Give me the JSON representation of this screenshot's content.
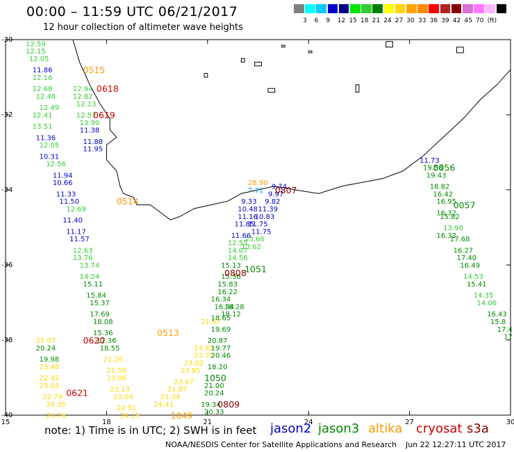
{
  "header": {
    "title": "00:00 – 11:59 UTC 06/21/2017",
    "subtitle": "12 hour collection of altimeter wave heights"
  },
  "color_scale": {
    "colors": [
      "#808080",
      "#00ffff",
      "#00c8ff",
      "#0000cd",
      "#00008b",
      "#00e600",
      "#32cd32",
      "#008000",
      "#ffff00",
      "#ffd700",
      "#ffa500",
      "#ff8c00",
      "#ff0000",
      "#b22222",
      "#8b0000",
      "#da70d6",
      "#ff77ff",
      "#ffb6ff",
      "#000000"
    ],
    "labels": [
      "3",
      "6",
      "9",
      "12",
      "15",
      "18",
      "21",
      "24",
      "27",
      "30",
      "33",
      "36",
      "39",
      "42",
      "45",
      "70",
      "(ft)"
    ]
  },
  "axes": {
    "x_ticks": [
      "15",
      "18",
      "21",
      "24",
      "27",
      "30"
    ],
    "y_ticks": [
      "-30",
      "-32",
      "-34",
      "-36",
      "-38",
      "-40"
    ]
  },
  "note": "note: 1) Time is in UTC; 2) SWH is in feet",
  "satellites": [
    {
      "name": "jason2",
      "color": "#0000cc"
    },
    {
      "name": "jason3",
      "color": "#008800"
    },
    {
      "name": "altika",
      "color": "#ff9900"
    },
    {
      "name": "cryosat",
      "color": "#cc0000"
    },
    {
      "name": "s3a",
      "color": "#8b0000"
    }
  ],
  "footer": {
    "credit": "NOAA/NESDIS Center for Satellite Applications and Research",
    "timestamp": "Jun 22 12:27:11 UTC 2017"
  },
  "map_data": {
    "extent": {
      "lon": [
        15,
        30
      ],
      "lat": [
        -40,
        -30
      ]
    },
    "time_labels": [
      {
        "text": "0515",
        "lon": 17.3,
        "lat": -30.8,
        "color": "#ff9900"
      },
      {
        "text": "0618",
        "lon": 17.7,
        "lat": -31.3,
        "color": "#cc0000"
      },
      {
        "text": "0619",
        "lon": 17.6,
        "lat": -32.0,
        "color": "#cc0000"
      },
      {
        "text": "0514",
        "lon": 18.3,
        "lat": -34.3,
        "color": "#ff9900"
      },
      {
        "text": "0807",
        "lon": 23.0,
        "lat": -34.0,
        "color": "#8b0000"
      },
      {
        "text": "0056",
        "lon": 27.7,
        "lat": -33.4,
        "color": "#008800"
      },
      {
        "text": "0057",
        "lon": 28.3,
        "lat": -34.4,
        "color": "#008800"
      },
      {
        "text": "0808",
        "lon": 21.5,
        "lat": -36.2,
        "color": "#8b0000"
      },
      {
        "text": "1051",
        "lon": 22.1,
        "lat": -36.1,
        "color": "#008800"
      },
      {
        "text": "0513",
        "lon": 19.5,
        "lat": -37.8,
        "color": "#ff9900"
      },
      {
        "text": "0620",
        "lon": 17.3,
        "lat": -38.0,
        "color": "#cc0000"
      },
      {
        "text": "1050",
        "lon": 20.9,
        "lat": -39.0,
        "color": "#008800"
      },
      {
        "text": "0621",
        "lon": 16.8,
        "lat": -39.4,
        "color": "#cc0000"
      },
      {
        "text": "0809",
        "lon": 21.3,
        "lat": -39.7,
        "color": "#8b0000"
      },
      {
        "text": "1049",
        "lon": 19.9,
        "lat": -40.0,
        "color": "#ff9900"
      }
    ],
    "swh_values": [
      {
        "v": "12.59",
        "lon": 15.6,
        "lat": -30.1,
        "c": "#32cd32"
      },
      {
        "v": "12.15",
        "lon": 15.6,
        "lat": -30.3,
        "c": "#32cd32"
      },
      {
        "v": "12.05",
        "lon": 15.7,
        "lat": -30.5,
        "c": "#32cd32"
      },
      {
        "v": "11.86",
        "lon": 15.8,
        "lat": -30.8,
        "c": "#0000cc"
      },
      {
        "v": "12.16",
        "lon": 15.8,
        "lat": -31.0,
        "c": "#32cd32"
      },
      {
        "v": "12.68",
        "lon": 15.8,
        "lat": -31.3,
        "c": "#32cd32"
      },
      {
        "v": "12.48",
        "lon": 15.9,
        "lat": -31.5,
        "c": "#32cd32"
      },
      {
        "v": "12.49",
        "lon": 16.0,
        "lat": -31.8,
        "c": "#32cd32"
      },
      {
        "v": "12.41",
        "lon": 15.8,
        "lat": -32.0,
        "c": "#32cd32"
      },
      {
        "v": "13.51",
        "lon": 15.8,
        "lat": -32.3,
        "c": "#32cd32"
      },
      {
        "v": "11.36",
        "lon": 15.9,
        "lat": -32.6,
        "c": "#0000cc"
      },
      {
        "v": "12.05",
        "lon": 16.0,
        "lat": -32.8,
        "c": "#32cd32"
      },
      {
        "v": "10.31",
        "lon": 16.0,
        "lat": -33.1,
        "c": "#0000cc"
      },
      {
        "v": "12.56",
        "lon": 16.2,
        "lat": -33.3,
        "c": "#32cd32"
      },
      {
        "v": "11.94",
        "lon": 16.4,
        "lat": -33.6,
        "c": "#0000cc"
      },
      {
        "v": "10.66",
        "lon": 16.4,
        "lat": -33.8,
        "c": "#0000cc"
      },
      {
        "v": "11.33",
        "lon": 16.5,
        "lat": -34.1,
        "c": "#0000cc"
      },
      {
        "v": "11.50",
        "lon": 16.6,
        "lat": -34.3,
        "c": "#0000cc"
      },
      {
        "v": "12.69",
        "lon": 16.8,
        "lat": -34.5,
        "c": "#32cd32"
      },
      {
        "v": "11.40",
        "lon": 16.7,
        "lat": -34.8,
        "c": "#0000cc"
      },
      {
        "v": "11.17",
        "lon": 16.8,
        "lat": -35.1,
        "c": "#0000cc"
      },
      {
        "v": "11.57",
        "lon": 16.9,
        "lat": -35.3,
        "c": "#0000cc"
      },
      {
        "v": "12.63",
        "lon": 17.0,
        "lat": -35.6,
        "c": "#32cd32"
      },
      {
        "v": "13.76",
        "lon": 17.0,
        "lat": -35.8,
        "c": "#32cd32"
      },
      {
        "v": "13.74",
        "lon": 17.2,
        "lat": -36.0,
        "c": "#32cd32"
      },
      {
        "v": "14.24",
        "lon": 17.2,
        "lat": -36.3,
        "c": "#32cd32"
      },
      {
        "v": "15.11",
        "lon": 17.3,
        "lat": -36.5,
        "c": "#008800"
      },
      {
        "v": "15.84",
        "lon": 17.4,
        "lat": -36.8,
        "c": "#008800"
      },
      {
        "v": "15.37",
        "lon": 17.5,
        "lat": -37.0,
        "c": "#008800"
      },
      {
        "v": "17.69",
        "lon": 17.5,
        "lat": -37.3,
        "c": "#008800"
      },
      {
        "v": "18.08",
        "lon": 17.6,
        "lat": -37.5,
        "c": "#008800"
      },
      {
        "v": "15.36",
        "lon": 17.6,
        "lat": -37.8,
        "c": "#008800"
      },
      {
        "v": "17.36",
        "lon": 17.7,
        "lat": -38.0,
        "c": "#008800"
      },
      {
        "v": "18.55",
        "lon": 17.8,
        "lat": -38.2,
        "c": "#008800"
      },
      {
        "v": "21.26",
        "lon": 17.9,
        "lat": -38.5,
        "c": "#ffd700"
      },
      {
        "v": "21.50",
        "lon": 18.0,
        "lat": -38.8,
        "c": "#ffd700"
      },
      {
        "v": "23.06",
        "lon": 18.0,
        "lat": -39.0,
        "c": "#ffd700"
      },
      {
        "v": "23.13",
        "lon": 18.1,
        "lat": -39.3,
        "c": "#ffd700"
      },
      {
        "v": "23.04",
        "lon": 18.2,
        "lat": -39.5,
        "c": "#ffd700"
      },
      {
        "v": "22.51",
        "lon": 18.3,
        "lat": -39.8,
        "c": "#ffd700"
      },
      {
        "v": "24.15",
        "lon": 18.4,
        "lat": -40.0,
        "c": "#ffd700"
      },
      {
        "v": "21.07",
        "lon": 15.9,
        "lat": -38.0,
        "c": "#ffd700"
      },
      {
        "v": "20.24",
        "lon": 15.9,
        "lat": -38.2,
        "c": "#008800"
      },
      {
        "v": "19.98",
        "lon": 16.0,
        "lat": -38.5,
        "c": "#008800"
      },
      {
        "v": "23.48",
        "lon": 16.0,
        "lat": -38.7,
        "c": "#ffd700"
      },
      {
        "v": "22.42",
        "lon": 16.0,
        "lat": -39.0,
        "c": "#ffd700"
      },
      {
        "v": "23.03",
        "lon": 16.0,
        "lat": -39.2,
        "c": "#ffd700"
      },
      {
        "v": "22.74",
        "lon": 16.1,
        "lat": -39.5,
        "c": "#ffd700"
      },
      {
        "v": "24.35",
        "lon": 16.2,
        "lat": -39.7,
        "c": "#ffd700"
      },
      {
        "v": "24.76",
        "lon": 16.2,
        "lat": -40.0,
        "c": "#ffd700"
      },
      {
        "v": "12.94",
        "lon": 17.0,
        "lat": -31.3,
        "c": "#32cd32"
      },
      {
        "v": "12.82",
        "lon": 17.0,
        "lat": -31.5,
        "c": "#32cd32"
      },
      {
        "v": "12.13",
        "lon": 17.1,
        "lat": -31.7,
        "c": "#32cd32"
      },
      {
        "v": "12.57",
        "lon": 17.1,
        "lat": -32.0,
        "c": "#32cd32"
      },
      {
        "v": "13.99",
        "lon": 17.2,
        "lat": -32.2,
        "c": "#32cd32"
      },
      {
        "v": "11.38",
        "lon": 17.2,
        "lat": -32.4,
        "c": "#0000cc"
      },
      {
        "v": "11.88",
        "lon": 17.3,
        "lat": -32.7,
        "c": "#0000cc"
      },
      {
        "v": "11.95",
        "lon": 17.3,
        "lat": -32.9,
        "c": "#0000cc"
      },
      {
        "v": "21.67",
        "lon": 20.8,
        "lat": -37.5,
        "c": "#ffd700"
      },
      {
        "v": "24.82",
        "lon": 20.6,
        "lat": -38.2,
        "c": "#ffd700"
      },
      {
        "v": "23.75",
        "lon": 20.6,
        "lat": -38.4,
        "c": "#ffd700"
      },
      {
        "v": "23.02",
        "lon": 20.3,
        "lat": -38.6,
        "c": "#ffd700"
      },
      {
        "v": "23.85",
        "lon": 20.2,
        "lat": -38.8,
        "c": "#ffd700"
      },
      {
        "v": "23.67",
        "lon": 20.0,
        "lat": -39.1,
        "c": "#ffd700"
      },
      {
        "v": "21.87",
        "lon": 19.8,
        "lat": -39.3,
        "c": "#ffd700"
      },
      {
        "v": "21.34",
        "lon": 19.6,
        "lat": -39.5,
        "c": "#ffd700"
      },
      {
        "v": "24.41",
        "lon": 19.4,
        "lat": -39.7,
        "c": "#ffd700"
      },
      {
        "v": "20.87",
        "lon": 21.0,
        "lat": -38.0,
        "c": "#008800"
      },
      {
        "v": "19.77",
        "lon": 21.1,
        "lat": -38.2,
        "c": "#008800"
      },
      {
        "v": "20.46",
        "lon": 21.1,
        "lat": -38.4,
        "c": "#008800"
      },
      {
        "v": "18.20",
        "lon": 21.0,
        "lat": -38.7,
        "c": "#008800"
      },
      {
        "v": "21.00",
        "lon": 20.9,
        "lat": -39.2,
        "c": "#008800"
      },
      {
        "v": "20.24",
        "lon": 20.9,
        "lat": -39.4,
        "c": "#008800"
      },
      {
        "v": "19.34",
        "lon": 20.8,
        "lat": -39.7,
        "c": "#008800"
      },
      {
        "v": "20.33",
        "lon": 20.9,
        "lat": -39.9,
        "c": "#008800"
      },
      {
        "v": "19.69",
        "lon": 21.1,
        "lat": -37.7,
        "c": "#008800"
      },
      {
        "v": "18.65",
        "lon": 21.1,
        "lat": -37.4,
        "c": "#008800"
      },
      {
        "v": "18.12",
        "lon": 21.4,
        "lat": -37.3,
        "c": "#008800"
      },
      {
        "v": "16.34",
        "lon": 21.2,
        "lat": -37.1,
        "c": "#008800"
      },
      {
        "v": "18.28",
        "lon": 21.5,
        "lat": -37.1,
        "c": "#008800"
      },
      {
        "v": "16.34",
        "lon": 21.1,
        "lat": -36.9,
        "c": "#008800"
      },
      {
        "v": "16.22",
        "lon": 21.3,
        "lat": -36.7,
        "c": "#008800"
      },
      {
        "v": "15.83",
        "lon": 21.3,
        "lat": -36.5,
        "c": "#008800"
      },
      {
        "v": "15.36",
        "lon": 21.4,
        "lat": -36.3,
        "c": "#008800"
      },
      {
        "v": "15.13",
        "lon": 21.4,
        "lat": -36.0,
        "c": "#008800"
      },
      {
        "v": "14.56",
        "lon": 21.6,
        "lat": -35.8,
        "c": "#32cd32"
      },
      {
        "v": "14.07",
        "lon": 21.6,
        "lat": -35.6,
        "c": "#32cd32"
      },
      {
        "v": "12.55",
        "lon": 21.6,
        "lat": -35.4,
        "c": "#32cd32"
      },
      {
        "v": "13.62",
        "lon": 22.0,
        "lat": -35.5,
        "c": "#32cd32"
      },
      {
        "v": "13.66",
        "lon": 22.1,
        "lat": -35.3,
        "c": "#32cd32"
      },
      {
        "v": "11.66",
        "lon": 21.7,
        "lat": -35.2,
        "c": "#0000cc"
      },
      {
        "v": "11.85",
        "lon": 21.8,
        "lat": -34.9,
        "c": "#0000cc"
      },
      {
        "v": "11.75",
        "lon": 22.2,
        "lat": -34.9,
        "c": "#0000cc"
      },
      {
        "v": "11.75",
        "lon": 22.3,
        "lat": -35.1,
        "c": "#0000cc"
      },
      {
        "v": "11.16",
        "lon": 21.9,
        "lat": -34.7,
        "c": "#0000cc"
      },
      {
        "v": "10.83",
        "lon": 22.4,
        "lat": -34.7,
        "c": "#0000cc"
      },
      {
        "v": "10.48",
        "lon": 21.9,
        "lat": -34.5,
        "c": "#0000cc"
      },
      {
        "v": "11.39",
        "lon": 22.5,
        "lat": -34.5,
        "c": "#0000cc"
      },
      {
        "v": "9.33",
        "lon": 22.0,
        "lat": -34.3,
        "c": "#0000cc"
      },
      {
        "v": "9.82",
        "lon": 22.7,
        "lat": -34.3,
        "c": "#0000cc"
      },
      {
        "v": "9.97",
        "lon": 22.8,
        "lat": -34.1,
        "c": "#0000cc"
      },
      {
        "v": "9.74",
        "lon": 22.9,
        "lat": -33.9,
        "c": "#0000cc"
      },
      {
        "v": "7.71",
        "lon": 22.2,
        "lat": -34.0,
        "c": "#00a0ff"
      },
      {
        "v": "28.90",
        "lon": 22.2,
        "lat": -33.8,
        "c": "#ff9900"
      },
      {
        "v": "11.73",
        "lon": 27.3,
        "lat": -33.2,
        "c": "#0000cc"
      },
      {
        "v": "19.58",
        "lon": 27.4,
        "lat": -33.4,
        "c": "#008800"
      },
      {
        "v": "19.43",
        "lon": 27.5,
        "lat": -33.6,
        "c": "#008800"
      },
      {
        "v": "18.82",
        "lon": 27.6,
        "lat": -33.9,
        "c": "#008800"
      },
      {
        "v": "16.42",
        "lon": 27.7,
        "lat": -34.1,
        "c": "#008800"
      },
      {
        "v": "16.95",
        "lon": 27.8,
        "lat": -34.3,
        "c": "#008800"
      },
      {
        "v": "16.32",
        "lon": 27.8,
        "lat": -34.6,
        "c": "#008800"
      },
      {
        "v": "15.82",
        "lon": 27.9,
        "lat": -34.7,
        "c": "#008800"
      },
      {
        "v": "13.98",
        "lon": 28.0,
        "lat": -35.0,
        "c": "#32cd32"
      },
      {
        "v": "16.32",
        "lon": 27.8,
        "lat": -35.2,
        "c": "#008800"
      },
      {
        "v": "17.68",
        "lon": 28.2,
        "lat": -35.3,
        "c": "#008800"
      },
      {
        "v": "16.27",
        "lon": 28.3,
        "lat": -35.6,
        "c": "#008800"
      },
      {
        "v": "17.40",
        "lon": 28.4,
        "lat": -35.8,
        "c": "#008800"
      },
      {
        "v": "16.49",
        "lon": 28.5,
        "lat": -36.0,
        "c": "#008800"
      },
      {
        "v": "14.53",
        "lon": 28.6,
        "lat": -36.3,
        "c": "#32cd32"
      },
      {
        "v": "15.41",
        "lon": 28.7,
        "lat": -36.5,
        "c": "#008800"
      },
      {
        "v": "14.35",
        "lon": 28.9,
        "lat": -36.8,
        "c": "#32cd32"
      },
      {
        "v": "14.06",
        "lon": 29.0,
        "lat": -37.0,
        "c": "#32cd32"
      },
      {
        "v": "16.43",
        "lon": 29.3,
        "lat": -37.3,
        "c": "#008800"
      },
      {
        "v": "15.8",
        "lon": 29.4,
        "lat": -37.5,
        "c": "#008800"
      },
      {
        "v": "17.4",
        "lon": 29.6,
        "lat": -37.7,
        "c": "#008800"
      },
      {
        "v": "17",
        "lon": 29.8,
        "lat": -37.9,
        "c": "#008800"
      }
    ],
    "coastline": [
      [
        17.0,
        -30.0
      ],
      [
        17.2,
        -30.6
      ],
      [
        17.5,
        -31.2
      ],
      [
        17.8,
        -31.7
      ],
      [
        18.1,
        -32.1
      ],
      [
        18.1,
        -32.4
      ],
      [
        18.3,
        -32.6
      ],
      [
        18.0,
        -32.8
      ],
      [
        18.0,
        -33.2
      ],
      [
        18.3,
        -33.5
      ],
      [
        18.4,
        -33.9
      ],
      [
        18.5,
        -34.1
      ],
      [
        18.8,
        -34.2
      ],
      [
        18.9,
        -34.4
      ],
      [
        19.3,
        -34.4
      ],
      [
        19.6,
        -34.6
      ],
      [
        19.9,
        -34.8
      ],
      [
        20.2,
        -34.7
      ],
      [
        20.6,
        -34.5
      ],
      [
        21.1,
        -34.4
      ],
      [
        21.6,
        -34.3
      ],
      [
        22.0,
        -34.1
      ],
      [
        22.5,
        -34.0
      ],
      [
        23.0,
        -33.9
      ],
      [
        23.6,
        -34.0
      ],
      [
        24.3,
        -34.1
      ],
      [
        25.0,
        -33.9
      ],
      [
        25.6,
        -33.8
      ],
      [
        26.2,
        -33.7
      ],
      [
        26.8,
        -33.5
      ],
      [
        27.4,
        -33.1
      ],
      [
        28.0,
        -32.6
      ],
      [
        28.6,
        -32.1
      ],
      [
        29.1,
        -31.6
      ],
      [
        29.6,
        -31.2
      ],
      [
        30.0,
        -30.8
      ]
    ],
    "islands": [
      [
        [
          23.2,
          -30.15
        ],
        [
          23.3,
          -30.2
        ]
      ],
      [
        [
          26.3,
          -30.05
        ],
        [
          26.5,
          -30.2
        ]
      ],
      [
        [
          24.0,
          -30.3
        ],
        [
          24.1,
          -30.35
        ]
      ],
      [
        [
          28.4,
          -30.2
        ],
        [
          28.6,
          -30.35
        ]
      ],
      [
        [
          22.0,
          -30.5
        ],
        [
          22.1,
          -30.6
        ]
      ],
      [
        [
          22.4,
          -30.6
        ],
        [
          22.6,
          -30.7
        ]
      ],
      [
        [
          25.4,
          -31.2
        ],
        [
          25.5,
          -31.4
        ]
      ],
      [
        [
          22.8,
          -31.3
        ],
        [
          23.0,
          -31.4
        ]
      ],
      [
        [
          20.9,
          -30.9
        ],
        [
          21.0,
          -31.0
        ]
      ]
    ]
  }
}
